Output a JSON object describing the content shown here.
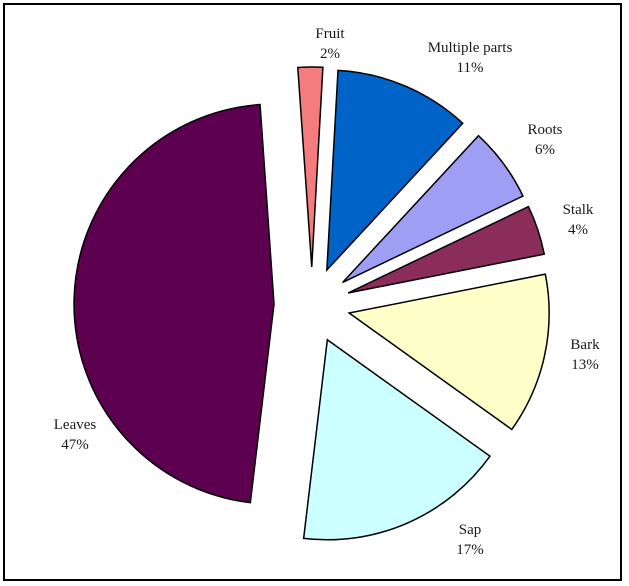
{
  "chart_data": {
    "type": "pie",
    "title": "",
    "exploded": true,
    "edge_color": "#000000",
    "slices": [
      {
        "label": "Fruit",
        "pct_label": "2%",
        "value": 2,
        "color": "#f47c7c"
      },
      {
        "label": "Multiple parts",
        "pct_label": "11%",
        "value": 11,
        "color": "#0063c8"
      },
      {
        "label": "Roots",
        "pct_label": "6%",
        "value": 6,
        "color": "#9e9ef5"
      },
      {
        "label": "Stalk",
        "pct_label": "4%",
        "value": 4,
        "color": "#8b2d5a"
      },
      {
        "label": "Bark",
        "pct_label": "13%",
        "value": 13,
        "color": "#ffffc9"
      },
      {
        "label": "Sap",
        "pct_label": "17%",
        "value": 17,
        "color": "#ccffff"
      },
      {
        "label": "Leaves",
        "pct_label": "47%",
        "value": 47,
        "color": "#5e0050"
      }
    ]
  }
}
